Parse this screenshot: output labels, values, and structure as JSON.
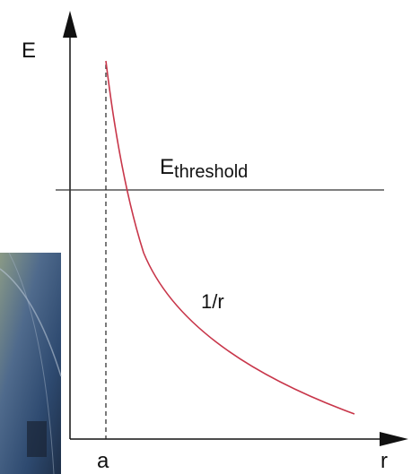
{
  "y_axis_label": "E",
  "x_axis_label": "r",
  "threshold_label": {
    "main": "E",
    "subscript": "threshold"
  },
  "curve_label": "1/r",
  "marker_label": "a"
}
